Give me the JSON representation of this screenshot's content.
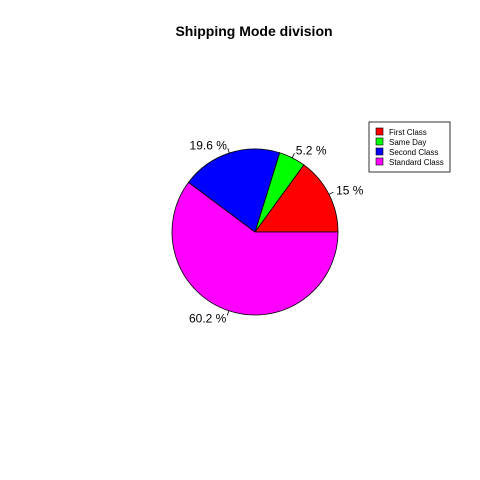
{
  "chart_data": {
    "type": "pie",
    "title": "Shipping Mode division",
    "categories": [
      "First Class",
      "Same Day",
      "Second Class",
      "Standard Class"
    ],
    "values": [
      15.0,
      5.2,
      19.6,
      60.2
    ],
    "labels": [
      "15 %",
      "5.2 %",
      "19.6 %",
      "60.2 %"
    ],
    "colors": [
      "#ff0000",
      "#00ff00",
      "#0000ff",
      "#ff00ff"
    ],
    "legend": {
      "position": "top-right",
      "entries": [
        "First Class",
        "Same Day",
        "Second Class",
        "Standard Class"
      ]
    }
  }
}
